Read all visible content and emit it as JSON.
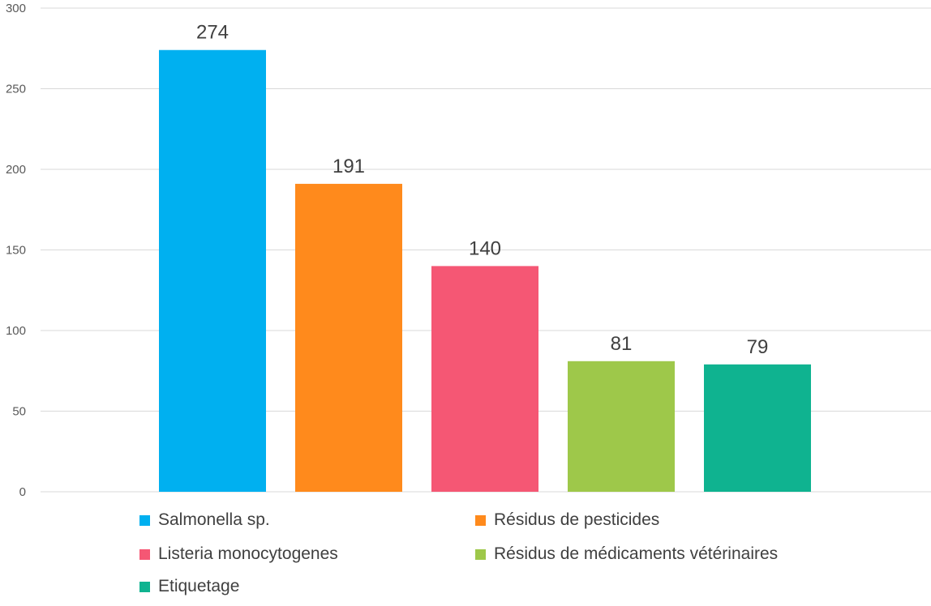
{
  "chart_data": {
    "type": "bar",
    "categories": [
      "Salmonella sp.",
      "Résidus de pesticides",
      "Listeria monocytogenes",
      "Résidus de médicaments vétérinaires",
      "Etiquetage"
    ],
    "values": [
      274,
      191,
      140,
      81,
      79
    ],
    "data_labels": [
      "274",
      "191",
      "140",
      "81",
      "79"
    ],
    "colors": [
      "#00b0f0",
      "#ff8a1c",
      "#f55774",
      "#9ec84a",
      "#0fb390"
    ],
    "ylim": [
      0,
      300
    ],
    "yticks": [
      0,
      50,
      100,
      150,
      200,
      250,
      300
    ],
    "ytick_labels": [
      "0",
      "50",
      "100",
      "150",
      "200",
      "250",
      "300"
    ],
    "grid": true,
    "legend_position": "bottom"
  }
}
